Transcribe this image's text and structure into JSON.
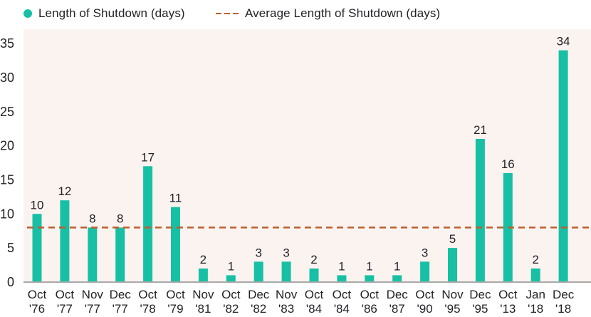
{
  "legend": {
    "bars_label": "Length of Shutdown (days)",
    "average_label": "Average Length of Shutdown (days)"
  },
  "colors": {
    "bar": "#17c0a4",
    "average_line": "#bd5e2c",
    "plot_bg": "#fbf3f0",
    "text": "#232227",
    "axis_line": "#a9a9a9"
  },
  "chart_data": {
    "type": "bar",
    "title": "",
    "xlabel": "",
    "ylabel": "",
    "categories": [
      [
        "Oct",
        "'76"
      ],
      [
        "Oct",
        "'77"
      ],
      [
        "Nov",
        "'77"
      ],
      [
        "Dec",
        "'77"
      ],
      [
        "Oct",
        "'78"
      ],
      [
        "Oct",
        "'79"
      ],
      [
        "Nov",
        "'81"
      ],
      [
        "Oct",
        "'82"
      ],
      [
        "Dec",
        "'82"
      ],
      [
        "Nov",
        "'83"
      ],
      [
        "Oct",
        "'84"
      ],
      [
        "Oct",
        "'84"
      ],
      [
        "Oct",
        "'86"
      ],
      [
        "Dec",
        "'87"
      ],
      [
        "Oct",
        "'90"
      ],
      [
        "Nov",
        "'95"
      ],
      [
        "Dec",
        "'95"
      ],
      [
        "Oct",
        "'13"
      ],
      [
        "Jan",
        "'18"
      ],
      [
        "Dec",
        "'18"
      ]
    ],
    "values": [
      10,
      12,
      8,
      8,
      17,
      11,
      2,
      1,
      3,
      3,
      2,
      1,
      1,
      1,
      3,
      5,
      21,
      16,
      2,
      34
    ],
    "series_name": "Length of Shutdown (days)",
    "average_line": {
      "label": "Average Length of Shutdown (days)",
      "value": 8,
      "style": "dashed"
    },
    "ylim": [
      0,
      35
    ],
    "yticks": [
      0,
      5,
      10,
      15,
      20,
      25,
      30,
      35
    ],
    "grid": false,
    "legend_position": "top-left",
    "value_labels_shown": true
  }
}
